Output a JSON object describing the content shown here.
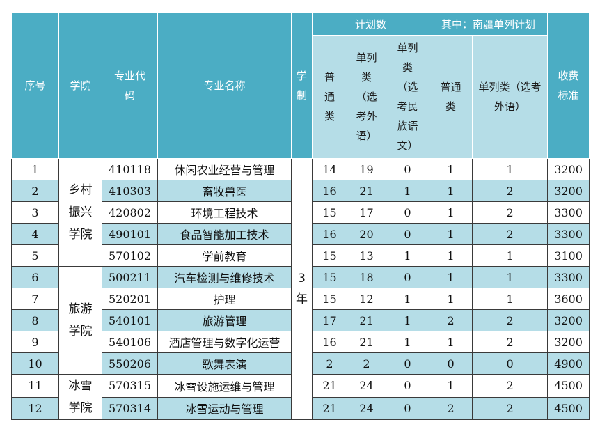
{
  "header": {
    "seq": "序号",
    "college": "学院",
    "major_code": "专业代码",
    "major_name": "专业名称",
    "period": "学制",
    "plan_total": "计划数",
    "among": "其中：南疆单列计划",
    "general": "普通类",
    "separate_foreign": "单列类（选考外语）",
    "separate_ethnic": "单列类（选考民族语文）",
    "nj_general": "普通类",
    "nj_separate_foreign": "单列类（选考外语）",
    "fee": "收费标准"
  },
  "colleges": {
    "rural": "乡村振兴学院",
    "tourism": "旅游学院",
    "ice": "冰雪学院"
  },
  "period_value": "3年",
  "rows": [
    {
      "seq": "1",
      "code": "410118",
      "name": "休闲农业经营与管理",
      "general": "14",
      "sep_foreign": "19",
      "sep_ethnic": "0",
      "nj_general": "1",
      "nj_sep": "1",
      "fee": "3200"
    },
    {
      "seq": "2",
      "code": "410303",
      "name": "畜牧兽医",
      "general": "16",
      "sep_foreign": "21",
      "sep_ethnic": "1",
      "nj_general": "1",
      "nj_sep": "2",
      "fee": "3200"
    },
    {
      "seq": "3",
      "code": "420802",
      "name": "环境工程技术",
      "general": "15",
      "sep_foreign": "17",
      "sep_ethnic": "0",
      "nj_general": "1",
      "nj_sep": "2",
      "fee": "3300"
    },
    {
      "seq": "4",
      "code": "490101",
      "name": "食品智能加工技术",
      "general": "16",
      "sep_foreign": "20",
      "sep_ethnic": "0",
      "nj_general": "1",
      "nj_sep": "2",
      "fee": "3300"
    },
    {
      "seq": "5",
      "code": "570102",
      "name": "学前教育",
      "general": "15",
      "sep_foreign": "13",
      "sep_ethnic": "1",
      "nj_general": "1",
      "nj_sep": "1",
      "fee": "3100"
    },
    {
      "seq": "6",
      "code": "500211",
      "name": "汽车检测与维修技术",
      "general": "15",
      "sep_foreign": "18",
      "sep_ethnic": "0",
      "nj_general": "1",
      "nj_sep": "1",
      "fee": "3300"
    },
    {
      "seq": "7",
      "code": "520201",
      "name": "护理",
      "general": "15",
      "sep_foreign": "12",
      "sep_ethnic": "1",
      "nj_general": "1",
      "nj_sep": "1",
      "fee": "3600"
    },
    {
      "seq": "8",
      "code": "540101",
      "name": "旅游管理",
      "general": "17",
      "sep_foreign": "21",
      "sep_ethnic": "1",
      "nj_general": "2",
      "nj_sep": "2",
      "fee": "3200"
    },
    {
      "seq": "9",
      "code": "540106",
      "name": "酒店管理与数字化运营",
      "general": "16",
      "sep_foreign": "21",
      "sep_ethnic": "1",
      "nj_general": "1",
      "nj_sep": "2",
      "fee": "3200"
    },
    {
      "seq": "10",
      "code": "550206",
      "name": "歌舞表演",
      "general": "2",
      "sep_foreign": "2",
      "sep_ethnic": "0",
      "nj_general": "0",
      "nj_sep": "0",
      "fee": "4900"
    },
    {
      "seq": "11",
      "code": "570315",
      "name": "冰雪设施运维与管理",
      "general": "21",
      "sep_foreign": "24",
      "sep_ethnic": "0",
      "nj_general": "1",
      "nj_sep": "2",
      "fee": "4500"
    },
    {
      "seq": "12",
      "code": "570314",
      "name": "冰雪运动与管理",
      "general": "21",
      "sep_foreign": "24",
      "sep_ethnic": "0",
      "nj_general": "2",
      "nj_sep": "2",
      "fee": "4500"
    }
  ]
}
